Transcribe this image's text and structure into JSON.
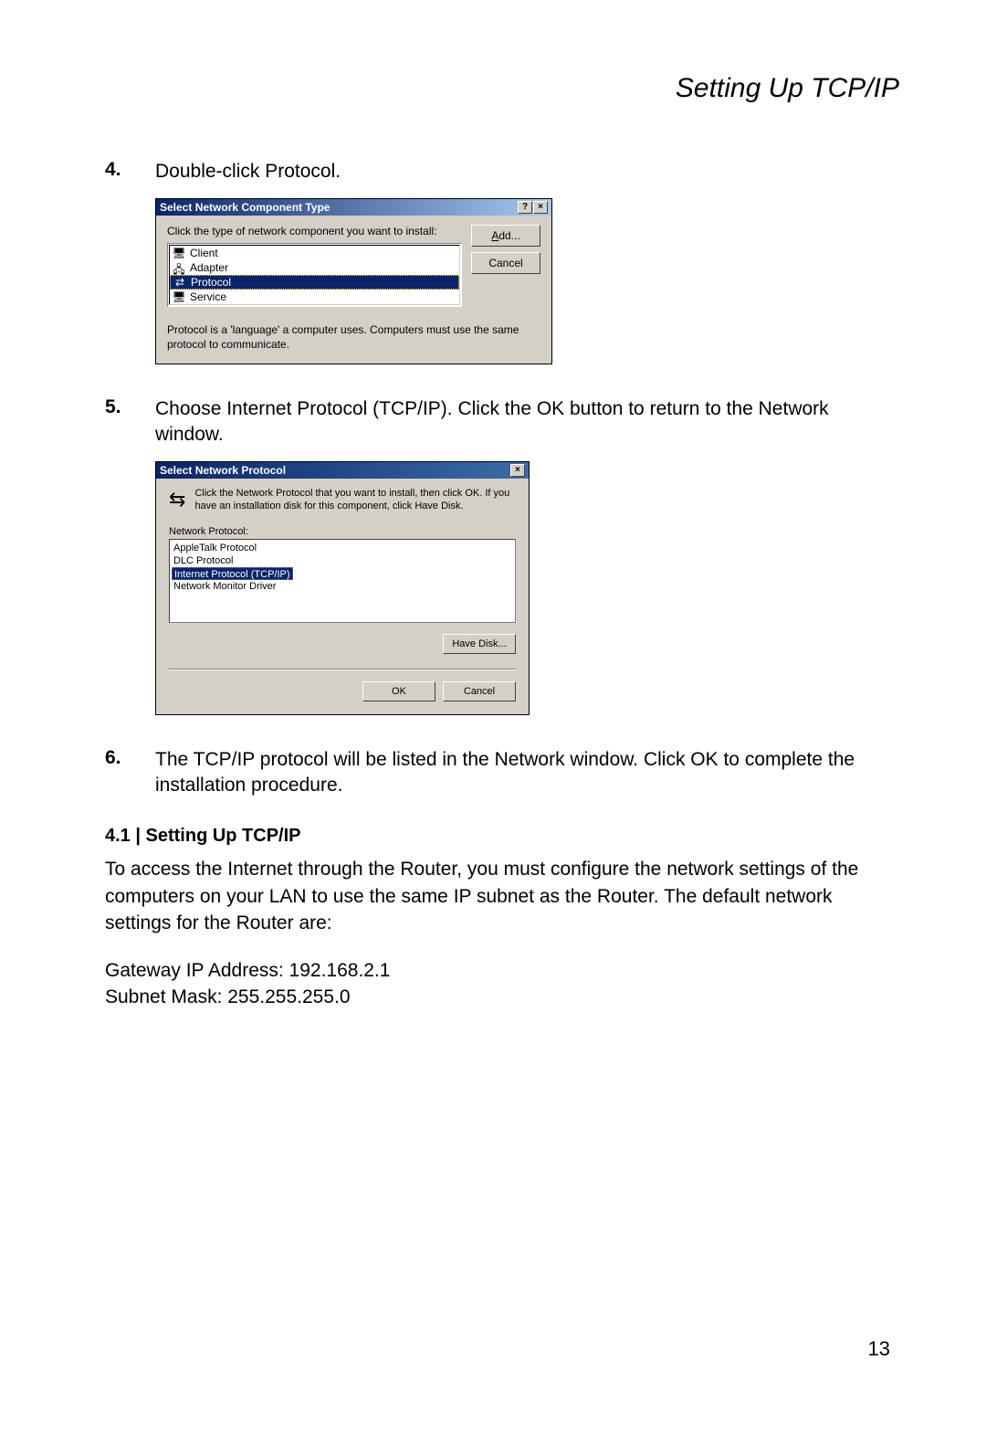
{
  "header": {
    "title": "Setting Up TCP/IP"
  },
  "steps": {
    "s4": {
      "num": "4.",
      "text": "Double-click Protocol."
    },
    "s5": {
      "num": "5.",
      "text": "Choose Internet Protocol (TCP/IP). Click the OK button to return to the Network window."
    },
    "s6": {
      "num": "6.",
      "text": "The TCP/IP protocol will be listed in the Network window. Click OK to complete the installation procedure."
    }
  },
  "dialog1": {
    "title": "Select Network Component Type",
    "help_btn": "?",
    "close_btn": "×",
    "instruction": "Click the type of network component you want to install:",
    "items": {
      "client": "Client",
      "adapter": "Adapter",
      "protocol": "Protocol",
      "service": "Service"
    },
    "add_label": "Add...",
    "add_ul": "A",
    "cancel_label": "Cancel",
    "description": "Protocol is a 'language' a computer uses. Computers must use the same protocol to communicate."
  },
  "dialog2": {
    "title": "Select Network Protocol",
    "close_btn": "×",
    "message": "Click the Network Protocol that you want to install, then click OK. If you have an installation disk for this component, click Have Disk.",
    "list_label": "Network Protocol:",
    "protocols": {
      "appletalk": "AppleTalk Protocol",
      "dlc": "DLC Protocol",
      "tcpip": "Internet Protocol (TCP/IP)",
      "monitor": "Network Monitor Driver"
    },
    "have_disk": "Have Disk...",
    "ok": "OK",
    "cancel": "Cancel"
  },
  "section": {
    "title": "4.1 | Setting Up TCP/IP",
    "p1": "To access the Internet through the Router, you must configure the network settings of the computers on your LAN to use the same IP subnet as the Router. The default network settings for the Router are:",
    "p2a": "Gateway IP Address: 192.168.2.1",
    "p2b": "Subnet Mask: 255.255.255.0"
  },
  "page_number": "13"
}
